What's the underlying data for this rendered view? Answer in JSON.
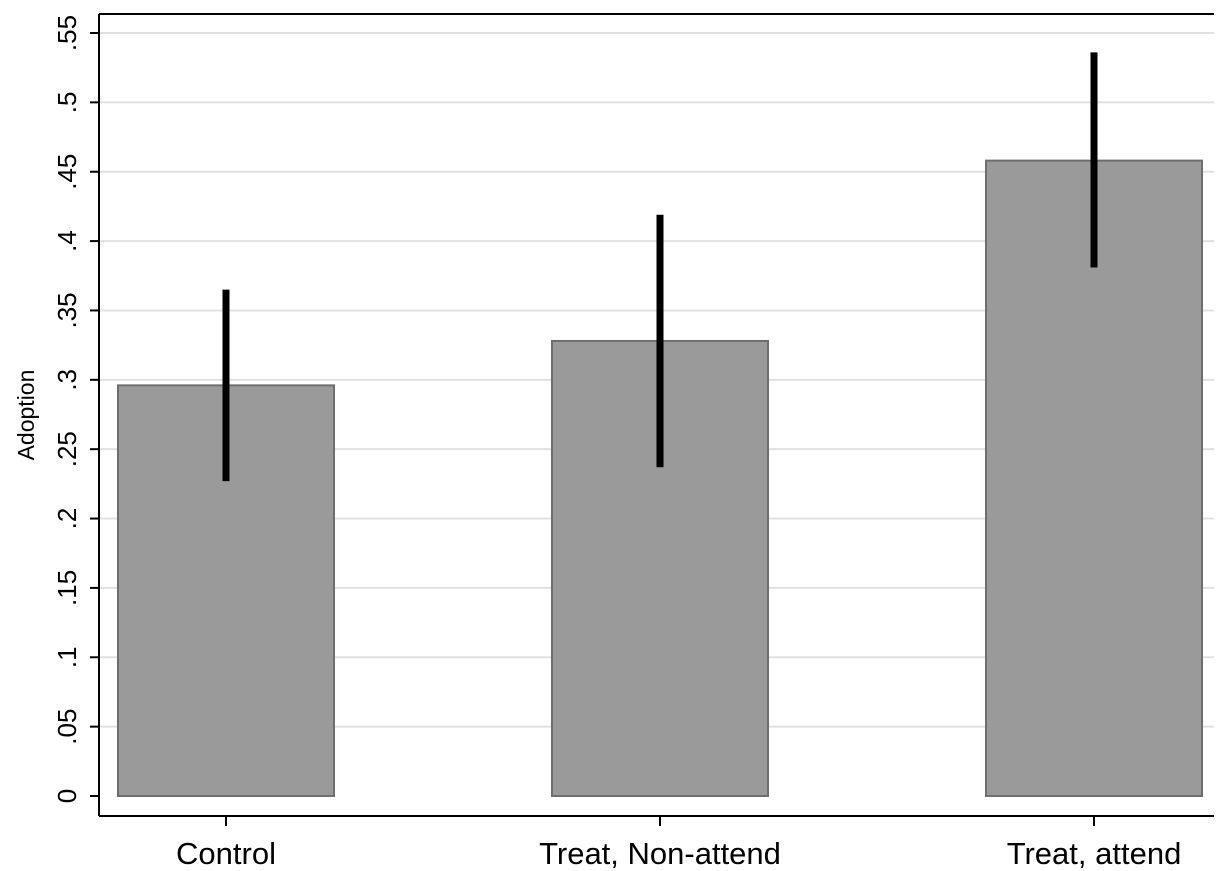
{
  "chart_data": {
    "type": "bar",
    "title": "",
    "xlabel": "",
    "ylabel": "Adoption",
    "categories": [
      "Control",
      "Treat, Non-attend",
      "Treat, attend"
    ],
    "values": [
      0.296,
      0.328,
      0.458
    ],
    "error_bars": [
      {
        "low": 0.227,
        "high": 0.365
      },
      {
        "low": 0.237,
        "high": 0.419
      },
      {
        "low": 0.381,
        "high": 0.536
      }
    ],
    "ylim": [
      0,
      0.55
    ],
    "yticks": [
      {
        "value": 0,
        "label": "0"
      },
      {
        "value": 0.05,
        "label": ".05"
      },
      {
        "value": 0.1,
        "label": ".1"
      },
      {
        "value": 0.15,
        "label": ".15"
      },
      {
        "value": 0.2,
        "label": ".2"
      },
      {
        "value": 0.25,
        "label": ".25"
      },
      {
        "value": 0.3,
        "label": ".3"
      },
      {
        "value": 0.35,
        "label": ".35"
      },
      {
        "value": 0.4,
        "label": ".4"
      },
      {
        "value": 0.45,
        "label": ".45"
      },
      {
        "value": 0.5,
        "label": ".5"
      },
      {
        "value": 0.55,
        "label": ".55"
      }
    ],
    "grid": true,
    "legend": "none",
    "colors": {
      "bar_fill": "#9a9a9a",
      "bar_stroke": "#6e6e6e",
      "error_bar": "#000000",
      "grid": "#e0e0e0"
    }
  }
}
